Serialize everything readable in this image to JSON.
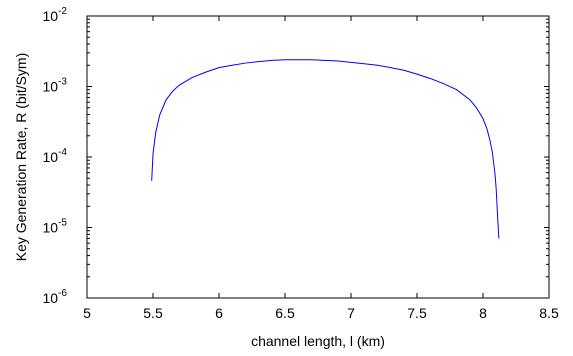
{
  "chart_data": {
    "type": "line",
    "title": "",
    "xlabel": "channel length, l (km)",
    "ylabel": "Key Generation Rate, R (bit/Sym)",
    "xlim": [
      5,
      8.5
    ],
    "ylim": [
      1e-06,
      0.01
    ],
    "yscale": "log",
    "grid": false,
    "box": true,
    "line_color": "#0000ff",
    "x_ticks": [
      {
        "value": 5,
        "label": "5"
      },
      {
        "value": 5.5,
        "label": "5.5"
      },
      {
        "value": 6,
        "label": "6"
      },
      {
        "value": 6.5,
        "label": "6.5"
      },
      {
        "value": 7,
        "label": "7"
      },
      {
        "value": 7.5,
        "label": "7.5"
      },
      {
        "value": 8,
        "label": "8"
      },
      {
        "value": 8.5,
        "label": "8.5"
      }
    ],
    "y_ticks": [
      {
        "value": 1e-06,
        "base": "10",
        "exp": "-6"
      },
      {
        "value": 1e-05,
        "base": "10",
        "exp": "-5"
      },
      {
        "value": 0.0001,
        "base": "10",
        "exp": "-4"
      },
      {
        "value": 0.001,
        "base": "10",
        "exp": "-3"
      },
      {
        "value": 0.01,
        "base": "10",
        "exp": "-2"
      }
    ],
    "series": [
      {
        "x": [
          5.49,
          5.5,
          5.52,
          5.55,
          5.6,
          5.65,
          5.7,
          5.8,
          5.9,
          6.0,
          6.1,
          6.2,
          6.3,
          6.4,
          6.5,
          6.6,
          6.7,
          6.8,
          6.9,
          7.0,
          7.1,
          7.2,
          7.3,
          7.4,
          7.5,
          7.6,
          7.7,
          7.8,
          7.9,
          7.95,
          8.0,
          8.03,
          8.05,
          8.07,
          8.09,
          8.1,
          8.11,
          8.12
        ],
        "y": [
          4.6e-05,
          0.00011,
          0.00022,
          0.00039,
          0.00065,
          0.00086,
          0.00105,
          0.00135,
          0.0016,
          0.00185,
          0.002,
          0.00215,
          0.00225,
          0.00235,
          0.0024,
          0.0024,
          0.0024,
          0.00235,
          0.0023,
          0.0022,
          0.0021,
          0.002,
          0.00185,
          0.0017,
          0.0015,
          0.0013,
          0.0011,
          0.0009,
          0.00065,
          0.0005,
          0.00035,
          0.00025,
          0.00018,
          0.00012,
          6e-05,
          3.5e-05,
          1.5e-05,
          7e-06
        ]
      }
    ]
  }
}
